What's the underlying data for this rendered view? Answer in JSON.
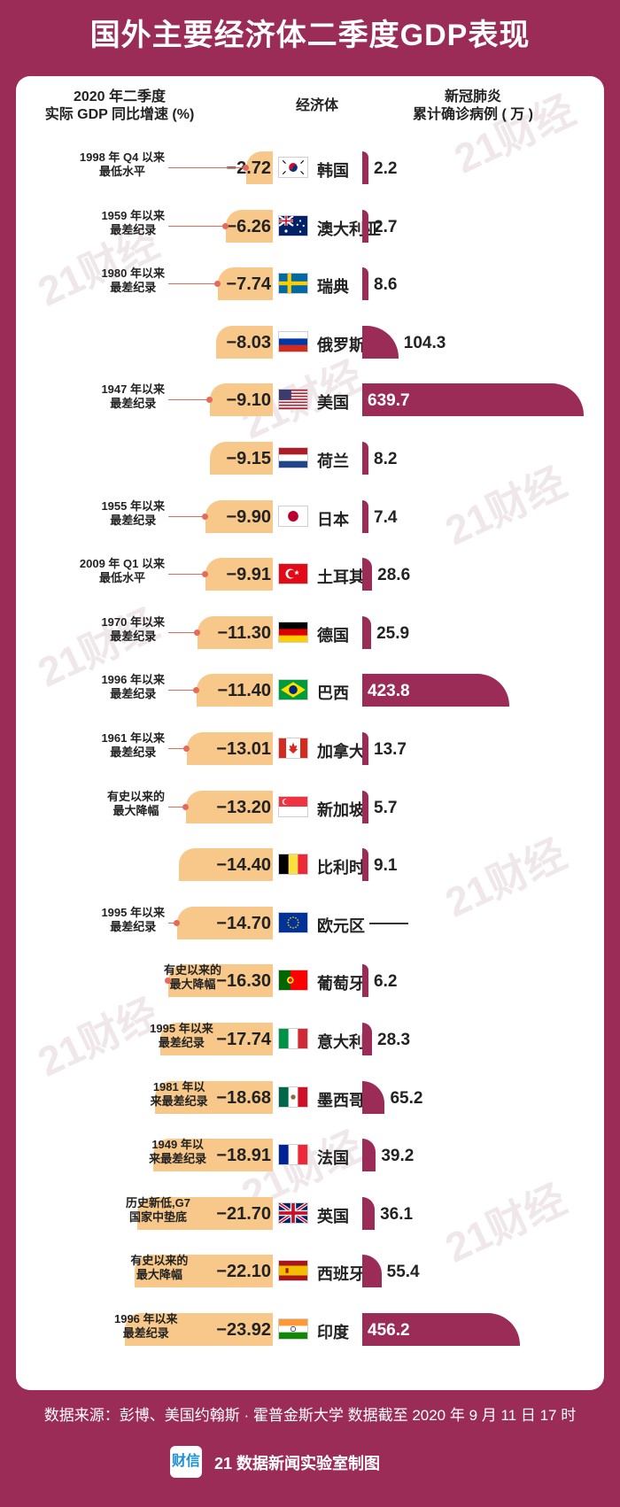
{
  "title": "国外主要经济体二季度GDP表现",
  "headers": {
    "gdp_line1": "2020 年二季度",
    "gdp_line2": "实际 GDP 同比增速 (%)",
    "economy": "经济体",
    "cases_line1": "新冠肺炎",
    "cases_line2": "累计确诊病例 ( 万 )"
  },
  "watermark": "21财经",
  "chart_data": {
    "type": "bar",
    "title": "国外主要经济体二季度GDP表现",
    "xlabel": "",
    "ylabel": "",
    "categories": [
      "韩国",
      "澳大利亚",
      "瑞典",
      "俄罗斯",
      "美国",
      "荷兰",
      "日本",
      "土耳其",
      "德国",
      "巴西",
      "加拿大",
      "新加坡",
      "比利时",
      "欧元区",
      "葡萄牙",
      "意大利",
      "墨西哥",
      "法国",
      "英国",
      "西班牙",
      "印度"
    ],
    "series": [
      {
        "name": "2020 年二季度 实际 GDP 同比增速 (%)",
        "values": [
          -2.72,
          -6.26,
          -7.74,
          -8.03,
          -9.1,
          -9.15,
          -9.9,
          -9.91,
          -11.3,
          -11.4,
          -13.01,
          -13.2,
          -14.4,
          -14.7,
          -16.3,
          -17.74,
          -18.68,
          -18.91,
          -21.7,
          -22.1,
          -23.92
        ],
        "labels": [
          "−2.72",
          "−6.26",
          "−7.74",
          "−8.03",
          "−9.10",
          "−9.15",
          "−9.90",
          "−9.91",
          "−11.30",
          "−11.40",
          "−13.01",
          "−13.20",
          "−14.40",
          "−14.70",
          "−16.30",
          "−17.74",
          "−18.68",
          "−18.91",
          "−21.70",
          "−22.10",
          "−23.92"
        ],
        "color": "#f7c88a"
      },
      {
        "name": "新冠肺炎 累计确诊病例 ( 万 )",
        "values": [
          2.2,
          2.7,
          8.6,
          104.3,
          639.7,
          8.2,
          7.4,
          28.6,
          25.9,
          423.8,
          13.7,
          5.7,
          9.1,
          null,
          6.2,
          28.3,
          65.2,
          39.2,
          36.1,
          55.4,
          456.2
        ],
        "labels": [
          "2.2",
          "2.7",
          "8.6",
          "104.3",
          "639.7",
          "8.2",
          "7.4",
          "28.6",
          "25.9",
          "423.8",
          "13.7",
          "5.7",
          "9.1",
          "——",
          "6.2",
          "28.3",
          "65.2",
          "39.2",
          "36.1",
          "55.4",
          "456.2"
        ],
        "color": "#9b2c58"
      }
    ],
    "notes": [
      [
        "1998 年 Q4 以来",
        "最低水平"
      ],
      [
        "1959 年以来",
        "最差纪录"
      ],
      [
        "1980 年以来",
        "最差纪录"
      ],
      null,
      [
        "1947 年以来",
        "最差纪录"
      ],
      null,
      [
        "1955 年以来",
        "最差纪录"
      ],
      [
        "2009 年 Q1 以来",
        "最低水平"
      ],
      [
        "1970 年以来",
        "最差纪录"
      ],
      [
        "1996 年以来",
        "最差纪录"
      ],
      [
        "1961 年以来",
        "最差纪录"
      ],
      [
        "有史以来的",
        "最大降幅"
      ],
      null,
      [
        "1995 年以来",
        "最差纪录"
      ],
      [
        "有史以来的",
        "最大降幅"
      ],
      [
        "1995 年以来",
        "最差纪录"
      ],
      [
        "1981 年以",
        "来最差纪录"
      ],
      [
        "1949 年以",
        "来最差纪录"
      ],
      [
        "历史新低,G7",
        "国家中垫底"
      ],
      [
        "有史以来的",
        "最大降幅"
      ],
      [
        "1996 年以来",
        "最差纪录"
      ]
    ],
    "flags": [
      "korea-flag-icon",
      "australia-flag-icon",
      "sweden-flag-icon",
      "russia-flag-icon",
      "usa-flag-icon",
      "netherlands-flag-icon",
      "japan-flag-icon",
      "turkey-flag-icon",
      "germany-flag-icon",
      "brazil-flag-icon",
      "canada-flag-icon",
      "singapore-flag-icon",
      "belgium-flag-icon",
      "eu-flag-icon",
      "portugal-flag-icon",
      "italy-flag-icon",
      "mexico-flag-icon",
      "france-flag-icon",
      "uk-flag-icon",
      "spain-flag-icon",
      "india-flag-icon"
    ]
  },
  "footer": {
    "source": "数据来源：彭博、美国约翰斯 · 霍普金斯大学    数据截至 2020 年 9 月 11 日 17 时",
    "logo_text": "财信",
    "credit": "21 数据新闻实验室制图"
  },
  "colors": {
    "background": "#9b2c58",
    "gdp_bar": "#f7c88a",
    "case_bar": "#9b2c58",
    "connector": "#e56a5c"
  }
}
